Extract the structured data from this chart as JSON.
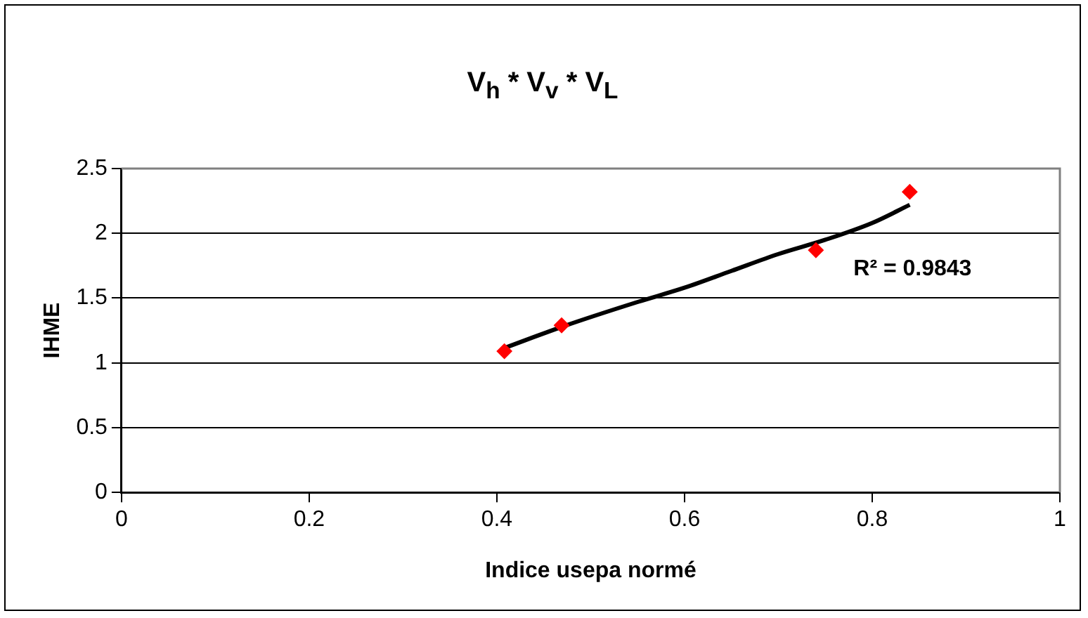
{
  "chart_data": {
    "type": "scatter",
    "title": "V$_{h}$ * V$_{v}$ * V$_{L}$",
    "xlabel": "Indice usepa normé",
    "ylabel": "IHME",
    "x": [
      0.408,
      0.469,
      0.74,
      0.84
    ],
    "series": [
      {
        "type": "scatter",
        "color": "#ff0000",
        "values": [
          1.09,
          1.29,
          1.87,
          2.32
        ],
        "marker": "diamond"
      },
      {
        "type": "line",
        "color": "#000000",
        "x": [
          0.41,
          0.47,
          0.55,
          0.6,
          0.65,
          0.7,
          0.75,
          0.8,
          0.84
        ],
        "values": [
          1.12,
          1.28,
          1.47,
          1.58,
          1.71,
          1.84,
          1.95,
          2.08,
          2.22
        ],
        "marker": "none"
      }
    ],
    "xlim": [
      0,
      1
    ],
    "xticks": [
      0,
      0.2,
      0.4,
      0.6,
      0.8,
      1
    ],
    "ylim": [
      0,
      2.5
    ],
    "yticks": [
      0,
      0.5,
      1,
      1.5,
      2,
      2.5
    ],
    "grid": "y",
    "legend": false,
    "annotations": [
      "R² = 0.9843"
    ]
  }
}
